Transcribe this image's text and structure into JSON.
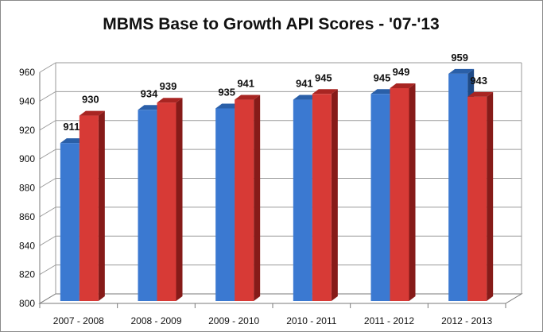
{
  "chart_data": {
    "type": "bar",
    "title": "MBMS Base to Growth API Scores - '07-'13",
    "categories": [
      "2007  -  2008",
      "2008  -  2009",
      "2009  -  2010",
      "2010  -  2011",
      "2011  -  2012",
      "2012  -  2013"
    ],
    "series": [
      {
        "values": [
          911,
          934,
          935,
          941,
          945,
          959
        ]
      },
      {
        "values": [
          930,
          939,
          941,
          945,
          949,
          943
        ]
      }
    ],
    "ylim": [
      800,
      960
    ],
    "yticks": [
      800,
      820,
      840,
      860,
      880,
      900,
      920,
      940,
      960
    ],
    "grid": true,
    "legend": "none",
    "colors": {
      "series1_front": "#3b79d1",
      "series1_top": "#2a5fa8",
      "series1_side": "#1f4a86",
      "series2_front": "#d73a36",
      "series2_top": "#a82522",
      "series2_side": "#861b19"
    }
  }
}
